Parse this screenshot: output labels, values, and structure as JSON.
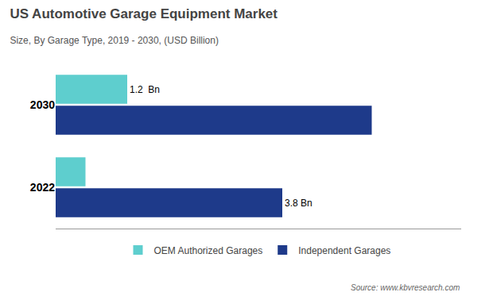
{
  "chart_data": {
    "type": "bar",
    "orientation": "horizontal",
    "title": "US Automotive Garage Equipment Market",
    "subtitle": "Size, By Garage Type, 2019 - 2030, (USD Billion)",
    "categories": [
      "2030",
      "2022"
    ],
    "series": [
      {
        "name": "OEM Authorized Garages",
        "color": "#5ecece",
        "values": [
          1.2,
          0.5
        ],
        "value_labels": [
          "1.2  Bn",
          null
        ]
      },
      {
        "name": "Independent Garages",
        "color": "#1e3a8a",
        "values": [
          5.3,
          3.8
        ],
        "value_labels": [
          null,
          "3.8 Bn"
        ]
      }
    ],
    "xlim": [
      0,
      6.8
    ],
    "tick_labels": "y",
    "grid": false,
    "legend": "bottom",
    "source": "Source: www.kbvresearch.com"
  }
}
